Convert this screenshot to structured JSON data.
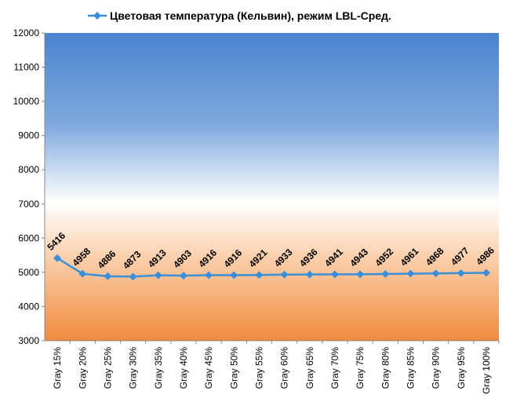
{
  "chart_data": {
    "type": "line",
    "categories": [
      "Gray 15%",
      "Gray 20%",
      "Gray 25%",
      "Gray 30%",
      "Gray 35%",
      "Gray 40%",
      "Gray 45%",
      "Gray 50%",
      "Gray 55%",
      "Gray 60%",
      "Gray 65%",
      "Gray 70%",
      "Gray 75%",
      "Gray 80%",
      "Gray 85%",
      "Gray 90%",
      "Gray 95%",
      "Gray 100%"
    ],
    "series": [
      {
        "name": "Цветовая температура (Кельвин), режим LBL-Сред.",
        "color": "#3a8fd8",
        "values": [
          5416,
          4958,
          4886,
          4873,
          4913,
          4903,
          4916,
          4916,
          4921,
          4933,
          4936,
          4941,
          4943,
          4952,
          4961,
          4968,
          4977,
          4986
        ]
      }
    ],
    "ylim": [
      3000,
      12000
    ],
    "yticks": [
      3000,
      4000,
      5000,
      6000,
      7000,
      8000,
      9000,
      10000,
      11000,
      12000
    ],
    "legend": "top",
    "data_labels": true
  }
}
